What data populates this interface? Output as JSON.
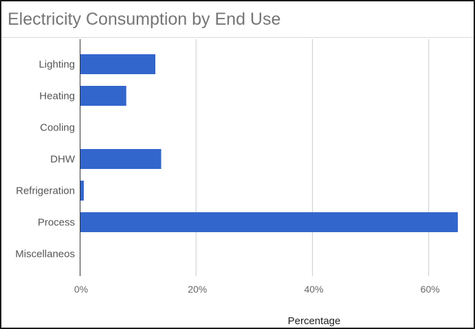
{
  "chart_data": {
    "type": "bar",
    "orientation": "horizontal",
    "title": "Electricity Consumption by End Use",
    "xlabel": "Percentage",
    "ylabel": "",
    "categories": [
      "Lighting",
      "Heating",
      "Cooling",
      "DHW",
      "Refrigeration",
      "Process",
      "Miscellaneos"
    ],
    "values": [
      13,
      8,
      0,
      14,
      0.7,
      65,
      0
    ],
    "xlim": [
      0,
      65
    ],
    "xticks": [
      0,
      20,
      40,
      60
    ],
    "xtick_labels": [
      "0%",
      "20%",
      "40%",
      "60%"
    ],
    "grid": true,
    "legend": "none",
    "bar_color": "#3366cc"
  }
}
